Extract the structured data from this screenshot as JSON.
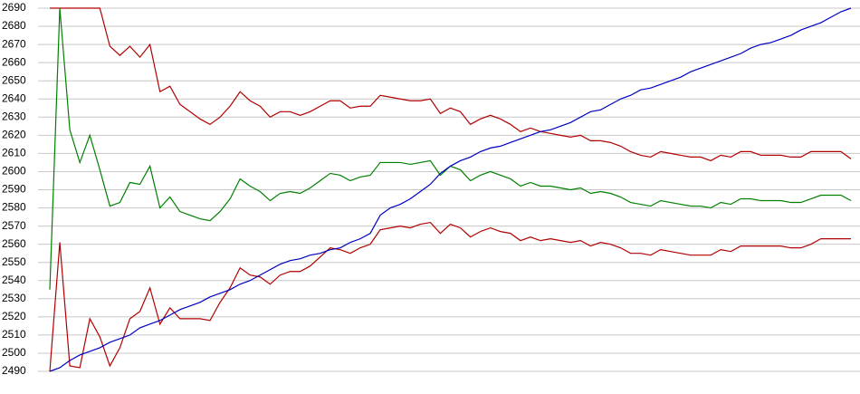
{
  "chart_data": {
    "type": "line",
    "ylim": [
      2490,
      2690
    ],
    "yticks": [
      2490,
      2500,
      2510,
      2520,
      2530,
      2540,
      2550,
      2560,
      2570,
      2580,
      2590,
      2600,
      2610,
      2620,
      2630,
      2640,
      2650,
      2660,
      2670,
      2680,
      2690
    ],
    "grid": true,
    "series": [
      {
        "color": "#b00000",
        "values": [
          2690,
          2690,
          2690,
          2690,
          2690,
          2690,
          2669,
          2664,
          2669,
          2663,
          2670,
          2644,
          2647,
          2637,
          2633,
          2629,
          2626,
          2630,
          2636,
          2644,
          2639,
          2636,
          2630,
          2633,
          2633,
          2631,
          2633,
          2636,
          2639,
          2639,
          2635,
          2636,
          2636,
          2642,
          2641,
          2640,
          2639,
          2639,
          2640,
          2632,
          2635,
          2633,
          2626,
          2629,
          2631,
          2629,
          2626,
          2622,
          2624,
          2622,
          2621,
          2620,
          2619,
          2620,
          2617,
          2617,
          2616,
          2614,
          2611,
          2609,
          2608,
          2611,
          2610,
          2609,
          2608,
          2608,
          2606,
          2609,
          2608,
          2611,
          2611,
          2609,
          2609,
          2609,
          2608,
          2608,
          2611,
          2611,
          2611,
          2611,
          2607
        ]
      },
      {
        "color": "#008000",
        "values": [
          2535,
          2690,
          2623,
          2605,
          2620,
          2601,
          2581,
          2583,
          2594,
          2593,
          2603,
          2580,
          2586,
          2578,
          2576,
          2574,
          2573,
          2578,
          2585,
          2596,
          2592,
          2589,
          2584,
          2588,
          2589,
          2588,
          2591,
          2595,
          2599,
          2598,
          2595,
          2597,
          2598,
          2605,
          2605,
          2605,
          2604,
          2605,
          2606,
          2598,
          2603,
          2601,
          2595,
          2598,
          2600,
          2598,
          2596,
          2592,
          2594,
          2592,
          2592,
          2591,
          2590,
          2591,
          2588,
          2589,
          2588,
          2586,
          2583,
          2582,
          2581,
          2584,
          2583,
          2582,
          2581,
          2581,
          2580,
          2583,
          2582,
          2585,
          2585,
          2584,
          2584,
          2584,
          2583,
          2583,
          2585,
          2587,
          2587,
          2587,
          2584
        ]
      },
      {
        "color": "#b00000",
        "values": [
          2490,
          2561,
          2493,
          2492,
          2519,
          2509,
          2493,
          2503,
          2519,
          2523,
          2536,
          2516,
          2525,
          2519,
          2519,
          2519,
          2518,
          2528,
          2536,
          2547,
          2543,
          2542,
          2538,
          2543,
          2545,
          2545,
          2548,
          2553,
          2558,
          2557,
          2555,
          2558,
          2560,
          2568,
          2569,
          2570,
          2569,
          2571,
          2572,
          2566,
          2571,
          2569,
          2564,
          2567,
          2569,
          2567,
          2566,
          2562,
          2564,
          2562,
          2563,
          2562,
          2561,
          2562,
          2559,
          2561,
          2560,
          2558,
          2555,
          2555,
          2554,
          2557,
          2556,
          2555,
          2554,
          2554,
          2554,
          2557,
          2556,
          2559,
          2559,
          2559,
          2559,
          2559,
          2558,
          2558,
          2560,
          2563,
          2563,
          2563,
          2563
        ]
      },
      {
        "color": "#0000c0",
        "values": [
          2490,
          2492,
          2496,
          2499,
          2501,
          2503,
          2506,
          2508,
          2510,
          2514,
          2516,
          2518,
          2521,
          2524,
          2526,
          2528,
          2531,
          2533,
          2535,
          2538,
          2540,
          2543,
          2546,
          2549,
          2551,
          2552,
          2554,
          2555,
          2557,
          2558,
          2561,
          2563,
          2566,
          2576,
          2580,
          2582,
          2585,
          2589,
          2593,
          2599,
          2603,
          2606,
          2608,
          2611,
          2613,
          2614,
          2616,
          2618,
          2620,
          2622,
          2623,
          2625,
          2627,
          2630,
          2633,
          2634,
          2637,
          2640,
          2642,
          2645,
          2646,
          2648,
          2650,
          2652,
          2655,
          2657,
          2659,
          2661,
          2663,
          2665,
          2668,
          2670,
          2671,
          2673,
          2675,
          2678,
          2680,
          2682,
          2685,
          2688,
          2690
        ]
      }
    ]
  }
}
